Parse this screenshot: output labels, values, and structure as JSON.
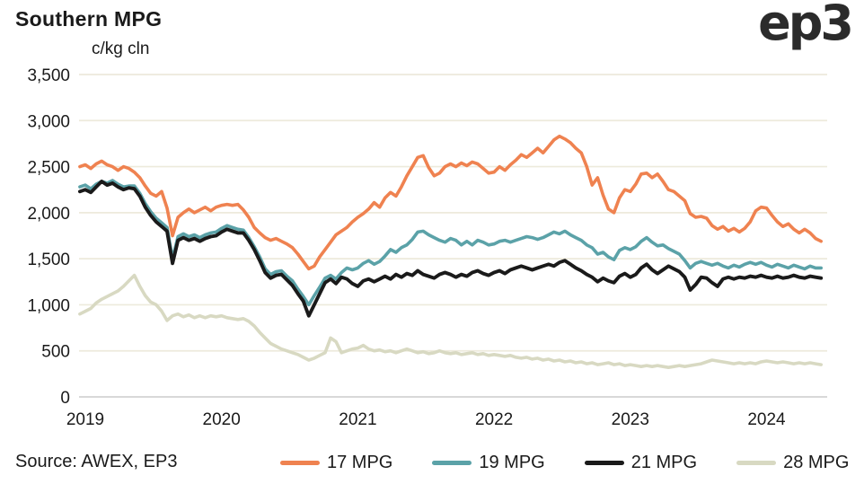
{
  "header": {
    "title": "Southern MPG",
    "logo": "ep3"
  },
  "footer": {
    "source": "Source: AWEX, EP3"
  },
  "chart_data": {
    "type": "line",
    "title": "Southern MPG",
    "unit": "c/kg cln",
    "grid": "horizontal",
    "legend_position": "bottom",
    "x_axis": {
      "start": 2018.96,
      "step": 0.04,
      "tick_years": [
        2019,
        2020,
        2021,
        2022,
        2023,
        2024
      ]
    },
    "y_axis": {
      "min": 0,
      "max": 3500,
      "tick_interval": 500,
      "ticks": [
        {
          "value": 3500,
          "label": "3,500"
        },
        {
          "value": 3000,
          "label": "3,000"
        },
        {
          "value": 2500,
          "label": "2,500"
        },
        {
          "value": 2000,
          "label": "2,000"
        },
        {
          "value": 1500,
          "label": "1,500"
        },
        {
          "value": 1000,
          "label": "1,000"
        },
        {
          "value": 500,
          "label": "500"
        },
        {
          "value": 0,
          "label": "0"
        }
      ]
    },
    "colors": {
      "grid": "#edeadc",
      "axis": "#d2d2d2"
    },
    "series": [
      {
        "name": "17 MPG",
        "color": "#ef8250",
        "values": [
          2500,
          2520,
          2480,
          2530,
          2560,
          2520,
          2500,
          2460,
          2500,
          2480,
          2440,
          2380,
          2290,
          2210,
          2180,
          2230,
          2050,
          1750,
          1950,
          2000,
          2040,
          2000,
          2030,
          2060,
          2020,
          2060,
          2080,
          2090,
          2080,
          2090,
          2030,
          1950,
          1840,
          1780,
          1730,
          1700,
          1720,
          1690,
          1660,
          1620,
          1550,
          1470,
          1390,
          1420,
          1520,
          1600,
          1680,
          1760,
          1800,
          1840,
          1900,
          1950,
          1990,
          2040,
          2110,
          2060,
          2160,
          2220,
          2180,
          2280,
          2400,
          2500,
          2600,
          2620,
          2490,
          2400,
          2430,
          2500,
          2530,
          2500,
          2540,
          2510,
          2550,
          2530,
          2480,
          2430,
          2440,
          2500,
          2460,
          2520,
          2570,
          2630,
          2600,
          2650,
          2700,
          2650,
          2720,
          2790,
          2830,
          2800,
          2760,
          2700,
          2650,
          2500,
          2300,
          2380,
          2190,
          2040,
          2000,
          2160,
          2250,
          2230,
          2310,
          2420,
          2430,
          2380,
          2420,
          2340,
          2250,
          2230,
          2180,
          2130,
          1990,
          1950,
          1960,
          1940,
          1860,
          1820,
          1850,
          1800,
          1830,
          1790,
          1830,
          1900,
          2020,
          2060,
          2050,
          1970,
          1900,
          1850,
          1880,
          1820,
          1780,
          1820,
          1780,
          1720,
          1690
        ]
      },
      {
        "name": "19 MPG",
        "color": "#5ba2a8",
        "values": [
          2280,
          2300,
          2260,
          2310,
          2340,
          2320,
          2350,
          2310,
          2280,
          2290,
          2290,
          2210,
          2100,
          2010,
          1940,
          1890,
          1840,
          1500,
          1740,
          1770,
          1740,
          1760,
          1730,
          1760,
          1780,
          1790,
          1830,
          1860,
          1840,
          1820,
          1810,
          1730,
          1630,
          1520,
          1390,
          1330,
          1360,
          1370,
          1310,
          1260,
          1170,
          1090,
          1000,
          1100,
          1190,
          1290,
          1320,
          1280,
          1350,
          1400,
          1380,
          1400,
          1450,
          1480,
          1440,
          1470,
          1530,
          1600,
          1570,
          1620,
          1650,
          1710,
          1790,
          1800,
          1760,
          1730,
          1700,
          1680,
          1720,
          1700,
          1650,
          1690,
          1650,
          1700,
          1680,
          1650,
          1660,
          1690,
          1700,
          1680,
          1700,
          1720,
          1740,
          1730,
          1710,
          1730,
          1760,
          1790,
          1770,
          1800,
          1760,
          1730,
          1700,
          1650,
          1620,
          1550,
          1570,
          1520,
          1490,
          1590,
          1620,
          1600,
          1630,
          1690,
          1730,
          1680,
          1640,
          1650,
          1610,
          1580,
          1550,
          1480,
          1400,
          1450,
          1470,
          1450,
          1430,
          1450,
          1420,
          1400,
          1430,
          1410,
          1440,
          1460,
          1440,
          1460,
          1430,
          1410,
          1440,
          1420,
          1400,
          1430,
          1410,
          1390,
          1420,
          1400,
          1400
        ]
      },
      {
        "name": "21 MPG",
        "color": "#1a1a1a",
        "values": [
          2230,
          2250,
          2220,
          2280,
          2340,
          2300,
          2320,
          2280,
          2250,
          2270,
          2260,
          2180,
          2060,
          1970,
          1900,
          1850,
          1800,
          1450,
          1700,
          1730,
          1700,
          1720,
          1690,
          1720,
          1740,
          1750,
          1790,
          1820,
          1800,
          1780,
          1780,
          1700,
          1600,
          1480,
          1350,
          1290,
          1320,
          1330,
          1270,
          1210,
          1120,
          1040,
          880,
          1000,
          1120,
          1240,
          1280,
          1230,
          1300,
          1280,
          1230,
          1200,
          1260,
          1280,
          1250,
          1280,
          1310,
          1280,
          1330,
          1300,
          1340,
          1320,
          1370,
          1330,
          1310,
          1290,
          1330,
          1350,
          1330,
          1300,
          1330,
          1310,
          1350,
          1370,
          1340,
          1320,
          1350,
          1370,
          1340,
          1380,
          1400,
          1420,
          1400,
          1380,
          1400,
          1420,
          1440,
          1420,
          1460,
          1480,
          1440,
          1400,
          1370,
          1330,
          1300,
          1250,
          1290,
          1260,
          1240,
          1310,
          1340,
          1300,
          1330,
          1400,
          1440,
          1380,
          1340,
          1380,
          1420,
          1390,
          1360,
          1300,
          1160,
          1220,
          1300,
          1290,
          1240,
          1200,
          1280,
          1300,
          1280,
          1300,
          1290,
          1310,
          1300,
          1320,
          1300,
          1290,
          1310,
          1290,
          1300,
          1320,
          1300,
          1290,
          1310,
          1300,
          1290
        ]
      },
      {
        "name": "28 MPG",
        "color": "#d8d9c2",
        "values": [
          900,
          930,
          960,
          1020,
          1060,
          1090,
          1120,
          1150,
          1200,
          1260,
          1320,
          1200,
          1100,
          1030,
          1000,
          930,
          830,
          880,
          900,
          870,
          890,
          860,
          880,
          860,
          880,
          870,
          880,
          860,
          850,
          840,
          850,
          820,
          770,
          700,
          640,
          580,
          550,
          520,
          500,
          480,
          460,
          430,
          400,
          420,
          450,
          480,
          640,
          600,
          480,
          500,
          520,
          530,
          560,
          520,
          500,
          510,
          490,
          500,
          480,
          500,
          520,
          500,
          480,
          490,
          470,
          480,
          500,
          480,
          470,
          480,
          460,
          470,
          480,
          460,
          470,
          450,
          460,
          450,
          440,
          450,
          430,
          420,
          430,
          410,
          420,
          400,
          410,
          390,
          400,
          380,
          390,
          370,
          380,
          360,
          370,
          350,
          360,
          370,
          350,
          360,
          340,
          350,
          340,
          330,
          340,
          330,
          340,
          330,
          320,
          330,
          340,
          330,
          340,
          350,
          360,
          380,
          400,
          390,
          380,
          370,
          360,
          370,
          360,
          370,
          360,
          380,
          390,
          380,
          370,
          380,
          370,
          360,
          370,
          360,
          370,
          360,
          350
        ]
      }
    ]
  }
}
